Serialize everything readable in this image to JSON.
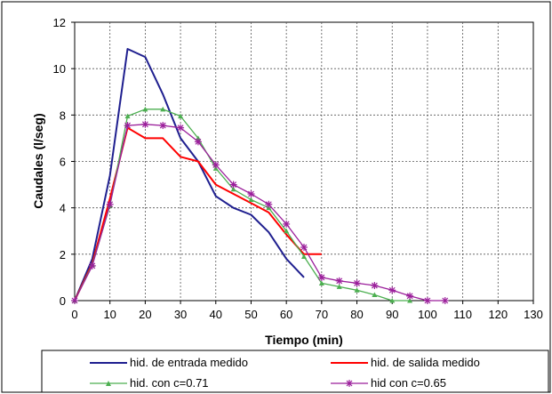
{
  "chart_data": {
    "type": "line",
    "title": "",
    "xlabel": "Tiempo (min)",
    "ylabel": "Caudales (l/seg)",
    "xlim": [
      0,
      130
    ],
    "ylim": [
      0,
      12
    ],
    "xticks": [
      0,
      10,
      20,
      30,
      40,
      50,
      60,
      70,
      80,
      90,
      100,
      110,
      120,
      130
    ],
    "yticks": [
      0,
      2,
      4,
      6,
      8,
      10,
      12
    ],
    "grid": true,
    "legend_position": "bottom",
    "series": [
      {
        "name": "hid. de entrada medido",
        "color": "#1f1f8f",
        "marker": "none",
        "x": [
          0,
          5,
          10,
          15,
          20,
          25,
          30,
          35,
          40,
          45,
          50,
          55,
          60,
          65
        ],
        "y": [
          0,
          1.8,
          5.4,
          10.85,
          10.5,
          8.9,
          7.0,
          6.0,
          4.5,
          4.0,
          3.7,
          2.95,
          1.8,
          1.0
        ]
      },
      {
        "name": "hid. de salida medido",
        "color": "#ff0000",
        "marker": "none",
        "x": [
          0,
          5,
          10,
          15,
          20,
          25,
          30,
          35,
          40,
          45,
          50,
          55,
          60,
          65,
          70
        ],
        "y": [
          0,
          1.6,
          4.4,
          7.45,
          7.0,
          7.0,
          6.2,
          6.0,
          5.0,
          4.6,
          4.2,
          3.8,
          2.85,
          2.0,
          2.0
        ]
      },
      {
        "name": "hid. con c=0.71",
        "color": "#4caf50",
        "marker": "triangle",
        "x": [
          0,
          5,
          10,
          15,
          20,
          25,
          30,
          35,
          40,
          45,
          50,
          55,
          60,
          65,
          70,
          75,
          80,
          85,
          90,
          95
        ],
        "y": [
          0,
          1.55,
          4.1,
          7.95,
          8.25,
          8.25,
          7.95,
          7.0,
          5.7,
          4.8,
          4.35,
          4.0,
          3.0,
          1.9,
          0.75,
          0.6,
          0.45,
          0.25,
          0.0,
          0.0
        ]
      },
      {
        "name": "hid con c=0.65",
        "color": "#9b1f9b",
        "marker": "star",
        "x": [
          0,
          5,
          10,
          15,
          20,
          25,
          30,
          35,
          40,
          45,
          50,
          55,
          60,
          65,
          70,
          75,
          80,
          85,
          90,
          95,
          100,
          105
        ],
        "y": [
          0,
          1.5,
          4.15,
          7.55,
          7.6,
          7.55,
          7.45,
          6.85,
          5.85,
          5.0,
          4.6,
          4.15,
          3.3,
          2.3,
          1.0,
          0.85,
          0.75,
          0.65,
          0.45,
          0.2,
          0.0,
          0.0
        ]
      }
    ]
  }
}
